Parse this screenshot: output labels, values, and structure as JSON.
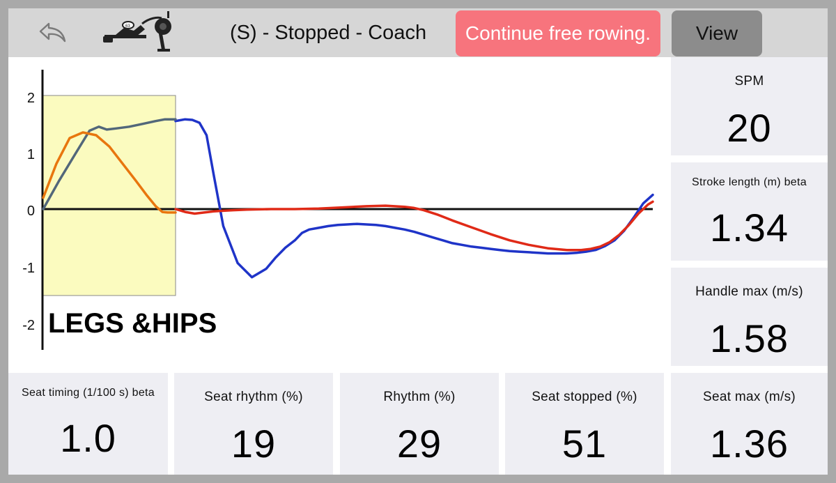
{
  "topbar": {
    "back_icon": "undo-arrow-icon",
    "erg_icon": "rowing-machine-icon",
    "title": "(S) - Stopped - Coach",
    "continue_label": "Continue free rowing.",
    "view_label": "View",
    "continue_color": "#f7747d"
  },
  "chart_data": {
    "type": "line",
    "title": "",
    "xlabel": "",
    "ylabel": "",
    "ylim": [
      -2.5,
      2.5
    ],
    "yticks": [
      "2",
      "1",
      "0",
      "-1",
      "-2"
    ],
    "annotation": "LEGS &HIPS",
    "highlight_color": "#fbfbbf",
    "series": [
      {
        "color": "#1f34c8",
        "x": [
          0,
          0.02,
          0.035,
          0.05,
          0.065,
          0.08,
          0.1,
          0.13,
          0.16,
          0.19,
          0.21,
          0.23,
          0.25,
          0.265,
          0.28,
          0.3,
          0.32,
          0.34,
          0.36,
          0.38,
          0.4,
          0.42,
          0.44,
          0.46,
          0.48,
          0.5,
          0.52,
          0.54,
          0.56,
          0.58,
          0.6,
          0.62,
          0.64,
          0.66,
          0.68,
          0.7,
          0.72,
          0.74,
          0.76,
          0.78,
          0.8,
          0.82,
          0.84,
          0.86,
          0.88,
          0.9,
          0.92,
          0.94,
          0.96,
          0.98,
          1.0
        ],
        "y": [
          1.55,
          1.58,
          1.57,
          1.52,
          1.3,
          0.6,
          -0.3,
          -0.95,
          -1.2,
          -1.05,
          -0.85,
          -0.68,
          -0.55,
          -0.42,
          -0.36,
          -0.33,
          -0.3,
          -0.28,
          -0.27,
          -0.26,
          -0.27,
          -0.28,
          -0.3,
          -0.33,
          -0.36,
          -0.4,
          -0.45,
          -0.5,
          -0.55,
          -0.6,
          -0.63,
          -0.66,
          -0.68,
          -0.7,
          -0.72,
          -0.74,
          -0.75,
          -0.76,
          -0.77,
          -0.78,
          -0.78,
          -0.78,
          -0.77,
          -0.75,
          -0.72,
          -0.65,
          -0.55,
          -0.38,
          -0.15,
          0.1,
          0.25
        ]
      },
      {
        "color": "#e02a17",
        "x": [
          0,
          0.02,
          0.04,
          0.06,
          0.08,
          0.1,
          0.12,
          0.15,
          0.2,
          0.25,
          0.3,
          0.35,
          0.4,
          0.44,
          0.48,
          0.5,
          0.52,
          0.55,
          0.58,
          0.62,
          0.66,
          0.7,
          0.74,
          0.78,
          0.82,
          0.85,
          0.87,
          0.89,
          0.91,
          0.93,
          0.95,
          0.97,
          0.99,
          1.0
        ],
        "y": [
          0,
          -0.05,
          -0.08,
          -0.06,
          -0.04,
          -0.03,
          -0.02,
          -0.01,
          0,
          0,
          0.01,
          0.03,
          0.05,
          0.06,
          0.04,
          0.02,
          -0.02,
          -0.1,
          -0.2,
          -0.32,
          -0.44,
          -0.55,
          -0.63,
          -0.69,
          -0.72,
          -0.72,
          -0.7,
          -0.66,
          -0.58,
          -0.45,
          -0.28,
          -0.08,
          0.08,
          0.13
        ]
      },
      {
        "color": "#52677a",
        "x": [
          0,
          0.12,
          0.25,
          0.35,
          0.42,
          0.48,
          0.55,
          0.65,
          0.75,
          0.85,
          0.92,
          1.0
        ],
        "y": [
          0,
          0.5,
          1.0,
          1.38,
          1.45,
          1.4,
          1.42,
          1.45,
          1.5,
          1.55,
          1.58,
          1.58
        ]
      },
      {
        "color": "#e8760e",
        "x": [
          0,
          0.1,
          0.2,
          0.3,
          0.4,
          0.5,
          0.6,
          0.7,
          0.78,
          0.85,
          0.9,
          0.94,
          1.0
        ],
        "y": [
          0.2,
          0.8,
          1.25,
          1.35,
          1.3,
          1.1,
          0.8,
          0.5,
          0.25,
          0.05,
          -0.05,
          -0.06,
          -0.06
        ]
      }
    ]
  },
  "metrics": {
    "spm": {
      "label": "SPM",
      "value": "20"
    },
    "stroke_length": {
      "label": "Stroke length (m) beta",
      "value": "1.34"
    },
    "handle_max": {
      "label": "Handle max (m/s)",
      "value": "1.58"
    },
    "seat_timing": {
      "label": "Seat timing (1/100 s) beta",
      "value": "1.0"
    },
    "seat_rhythm": {
      "label": "Seat rhythm (%)",
      "value": "19"
    },
    "rhythm": {
      "label": "Rhythm (%)",
      "value": "29"
    },
    "seat_stopped": {
      "label": "Seat stopped (%)",
      "value": "51"
    },
    "seat_max": {
      "label": "Seat max (m/s)",
      "value": "1.36"
    }
  }
}
